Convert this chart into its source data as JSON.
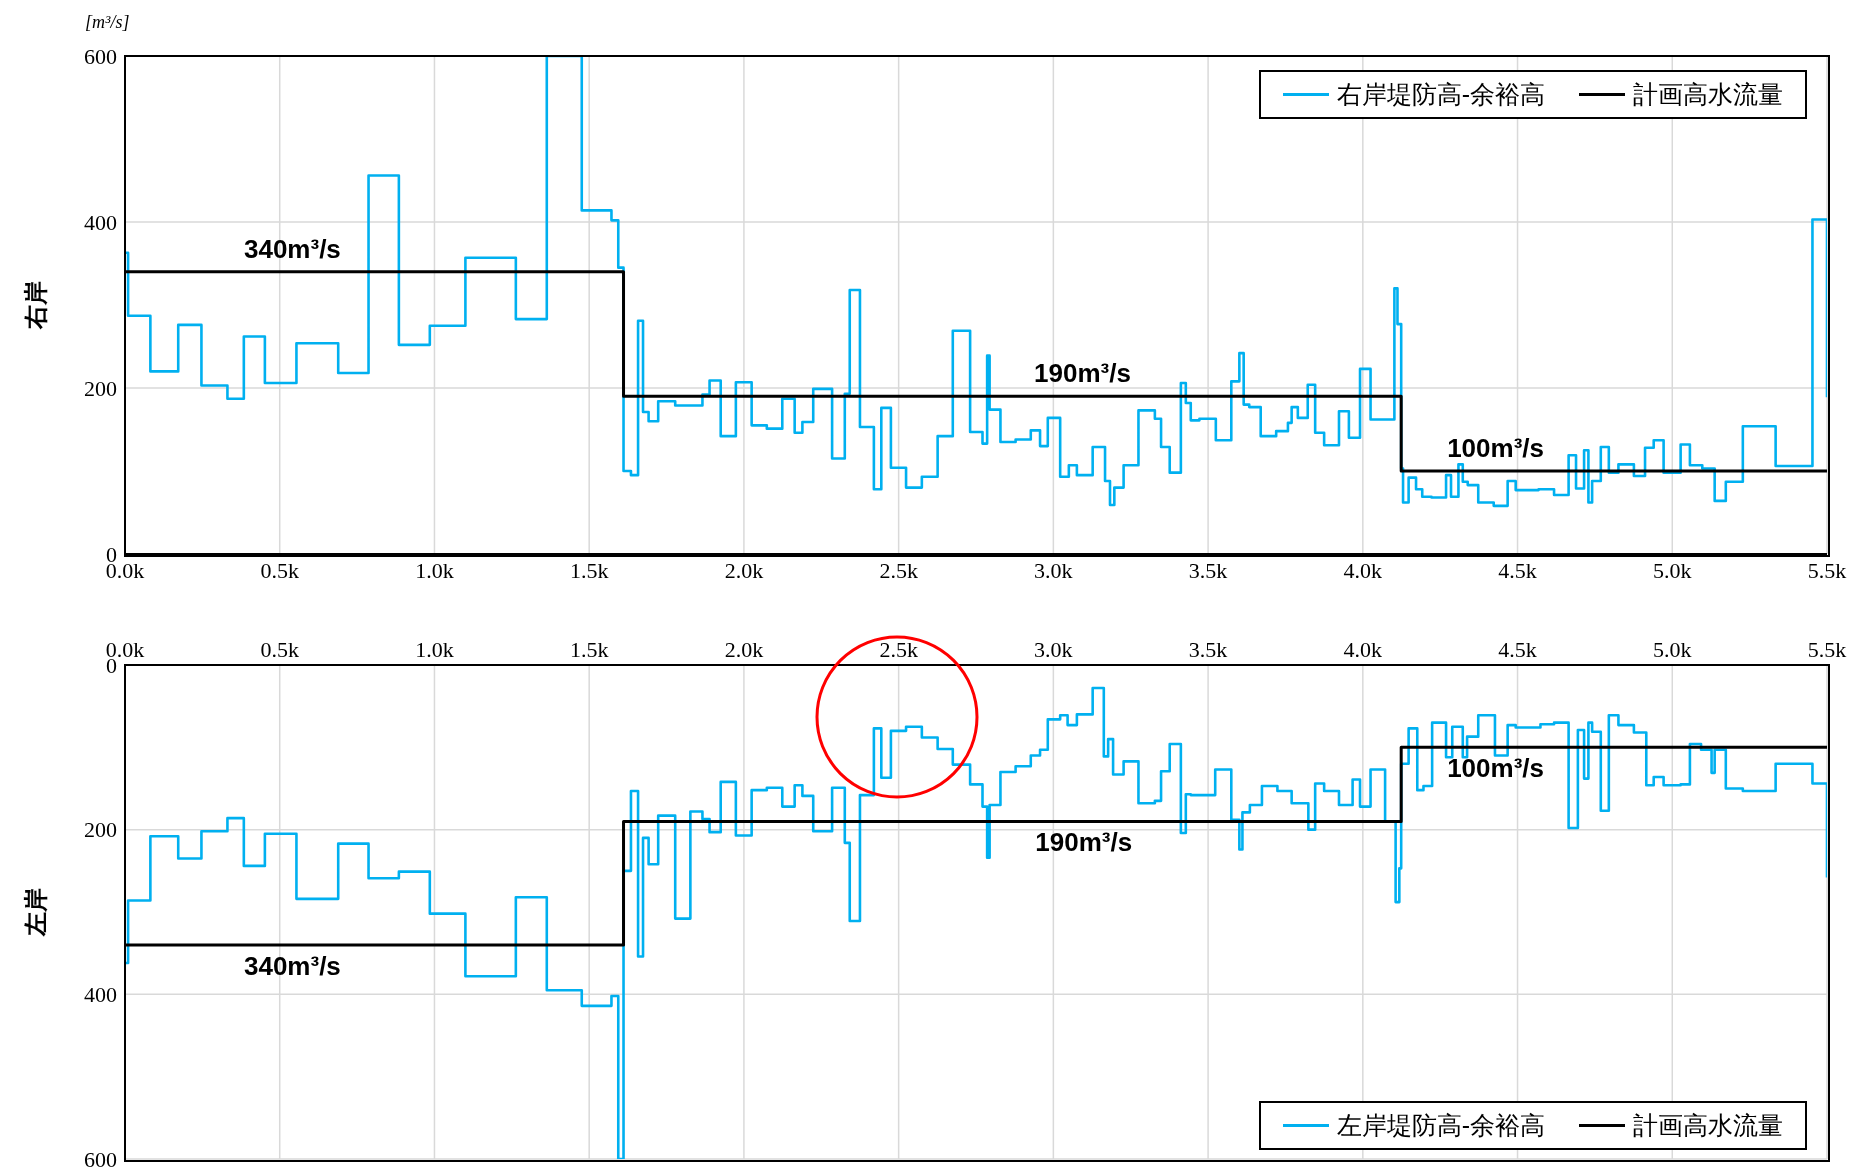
{
  "chart_data": [
    {
      "type": "step",
      "ylabel": "右岸",
      "annotations": [
        "[m³/s]",
        {
          "text": "340m³/s",
          "x": 541,
          "y": 340
        },
        {
          "text": "190m³/s",
          "x": 3094,
          "y": 190
        },
        {
          "text": "100m³/s",
          "x": 4429,
          "y": 100
        }
      ],
      "xlim": [
        0,
        5500
      ],
      "xticks": [
        {
          "value": 0,
          "label": "0.0k"
        },
        {
          "value": 500,
          "label": "0.5k"
        },
        {
          "value": 1000,
          "label": "1.0k"
        },
        {
          "value": 1500,
          "label": "1.5k"
        },
        {
          "value": 2000,
          "label": "2.0k"
        },
        {
          "value": 2500,
          "label": "2.5k"
        },
        {
          "value": 3000,
          "label": "3.0k"
        },
        {
          "value": 3500,
          "label": "3.5k"
        },
        {
          "value": 4000,
          "label": "4.0k"
        },
        {
          "value": 4500,
          "label": "4.5k"
        },
        {
          "value": 5000,
          "label": "5.0k"
        },
        {
          "value": 5500,
          "label": "5.5k"
        }
      ],
      "ylim": [
        0,
        600
      ],
      "yticks": [
        0,
        200,
        400,
        600
      ],
      "grid": true,
      "legend": "top right",
      "line_style": "solid",
      "series": [
        {
          "name": "右岸堤防高-余裕高",
          "color": "#00b0f0",
          "x": [
            0,
            10,
            82,
            172,
            247,
            331,
            384,
            452,
            554,
            689,
            787,
            885,
            985,
            1100,
            1263,
            1363,
            1476,
            1572,
            1594,
            1611,
            1635,
            1658,
            1674,
            1692,
            1723,
            1778,
            1866,
            1889,
            1925,
            1974,
            2025,
            2074,
            2124,
            2164,
            2189,
            2224,
            2285,
            2326,
            2342,
            2375,
            2420,
            2444,
            2475,
            2524,
            2575,
            2626,
            2675,
            2731,
            2771,
            2786,
            2794,
            2829,
            2878,
            2927,
            2957,
            2982,
            3022,
            3050,
            3076,
            3127,
            3167,
            3183,
            3197,
            3227,
            3275,
            3328,
            3348,
            3376,
            3412,
            3428,
            3444,
            3472,
            3525,
            3575,
            3601,
            3615,
            3633,
            3670,
            3720,
            3758,
            3770,
            3790,
            3822,
            3846,
            3875,
            3923,
            3955,
            3991,
            4025,
            4102,
            4112,
            4124,
            4130,
            4148,
            4172,
            4192,
            4222,
            4269,
            4285,
            4309,
            4323,
            4339,
            4373,
            4423,
            4468,
            4494,
            4568,
            4618,
            4665,
            4689,
            4715,
            4729,
            4741,
            4769,
            4795,
            4826,
            4876,
            4912,
            4940,
            4972,
            5027,
            5057,
            5097,
            5137,
            5173,
            5228,
            5334,
            5453,
            5500
          ],
          "values": [
            363,
            287,
            220,
            276,
            203,
            187,
            262,
            206,
            254,
            218,
            456,
            252,
            275,
            357,
            283,
            600,
            414,
            402,
            345,
            100,
            95,
            281,
            171,
            160,
            184,
            179,
            192,
            209,
            142,
            207,
            155,
            151,
            187,
            146,
            159,
            199,
            115,
            193,
            318,
            153,
            78,
            176,
            104,
            80,
            93,
            142,
            269,
            147,
            133,
            239,
            174,
            135,
            138,
            149,
            130,
            164,
            93,
            107,
            95,
            129,
            88,
            59,
            80,
            107,
            173,
            163,
            129,
            98,
            206,
            182,
            161,
            163,
            137,
            208,
            242,
            180,
            177,
            142,
            148,
            158,
            177,
            164,
            204,
            146,
            131,
            172,
            140,
            223,
            162,
            320,
            277,
            103,
            62,
            92,
            78,
            69,
            68,
            95,
            69,
            108,
            87,
            83,
            62,
            58,
            88,
            77,
            78,
            71,
            119,
            79,
            125,
            62,
            88,
            129,
            98,
            108,
            94,
            128,
            137,
            98,
            132,
            107,
            103,
            64,
            87,
            154,
            106,
            403,
            189
          ]
        },
        {
          "name": "計画高水流量",
          "color": "#000000",
          "x": [
            0,
            1611,
            4124,
            5500
          ],
          "values": [
            340,
            190,
            100,
            100
          ]
        }
      ]
    },
    {
      "type": "step",
      "ylabel": "左岸",
      "annotations": [
        {
          "text": "340m³/s",
          "x": 541,
          "y": 340
        },
        {
          "text": "190m³/s",
          "x": 3098,
          "y": 190
        },
        {
          "text": "100m³/s",
          "x": 4429,
          "y": 100
        }
      ],
      "xlim": [
        0,
        5500
      ],
      "tick_labels": "y",
      "x2lim": [
        0,
        5500
      ],
      "x2ticks": [
        {
          "value": 0,
          "label": "0.0k"
        },
        {
          "value": 500,
          "label": "0.5k"
        },
        {
          "value": 1000,
          "label": "1.0k"
        },
        {
          "value": 1500,
          "label": "1.5k"
        },
        {
          "value": 2000,
          "label": "2.0k"
        },
        {
          "value": 2500,
          "label": "2.5k"
        },
        {
          "value": 3000,
          "label": "3.0k"
        },
        {
          "value": 3500,
          "label": "3.5k"
        },
        {
          "value": 4000,
          "label": "4.0k"
        },
        {
          "value": 4500,
          "label": "4.5k"
        },
        {
          "value": 5000,
          "label": "5.0k"
        },
        {
          "value": 5500,
          "label": "5.5k"
        }
      ],
      "ylim": [
        600,
        0
      ],
      "yticks": [
        0,
        200,
        400,
        600
      ],
      "grid": true,
      "legend": "bottom right",
      "line_style": "solid",
      "series": [
        {
          "name": "左岸堤防高-余裕高",
          "color": "#00b0f0",
          "x": [
            0,
            10,
            82,
            172,
            247,
            331,
            384,
            452,
            554,
            689,
            787,
            885,
            985,
            1100,
            1263,
            1363,
            1476,
            1572,
            1594,
            1611,
            1635,
            1658,
            1674,
            1692,
            1723,
            1778,
            1827,
            1866,
            1889,
            1925,
            1974,
            2025,
            2074,
            2124,
            2164,
            2189,
            2224,
            2285,
            2326,
            2342,
            2375,
            2420,
            2444,
            2475,
            2524,
            2575,
            2626,
            2675,
            2731,
            2771,
            2786,
            2794,
            2829,
            2878,
            2927,
            2957,
            2982,
            3022,
            3046,
            3076,
            3127,
            3163,
            3177,
            3193,
            3227,
            3275,
            3328,
            3348,
            3376,
            3412,
            3428,
            3444,
            3523,
            3575,
            3601,
            3611,
            3635,
            3674,
            3724,
            3770,
            3824,
            3846,
            3875,
            3923,
            3967,
            3991,
            4025,
            4072,
            4106,
            4118,
            4124,
            4148,
            4176,
            4196,
            4224,
            4269,
            4289,
            4323,
            4337,
            4373,
            4427,
            4468,
            4494,
            4574,
            4618,
            4665,
            4695,
            4715,
            4729,
            4741,
            4769,
            4795,
            4826,
            4876,
            4916,
            4940,
            4972,
            5027,
            5057,
            5093,
            5127,
            5137,
            5173,
            5228,
            5334,
            5453,
            5500
          ],
          "values": [
            362,
            286,
            208,
            235,
            202,
            186,
            244,
            205,
            284,
            217,
            259,
            251,
            302,
            378,
            282,
            395,
            414,
            402,
            600,
            250,
            153,
            354,
            210,
            242,
            183,
            308,
            178,
            187,
            203,
            142,
            207,
            152,
            149,
            172,
            146,
            159,
            202,
            149,
            216,
            311,
            158,
            77,
            137,
            80,
            75,
            88,
            102,
            121,
            145,
            172,
            234,
            170,
            130,
            123,
            110,
            103,
            66,
            61,
            73,
            60,
            28,
            111,
            90,
            133,
            117,
            168,
            165,
            129,
            96,
            204,
            157,
            158,
            127,
            188,
            224,
            179,
            170,
            147,
            153,
            168,
            200,
            144,
            153,
            170,
            139,
            172,
            127,
            190,
            288,
            247,
            120,
            77,
            152,
            147,
            70,
            112,
            75,
            112,
            87,
            61,
            110,
            73,
            76,
            72,
            70,
            198,
            79,
            138,
            70,
            81,
            177,
            61,
            73,
            82,
            146,
            136,
            146,
            145,
            96,
            103,
            131,
            103,
            150,
            153,
            120,
            144,
            258
          ]
        },
        {
          "name": "計画高水流量",
          "color": "#000000",
          "x": [
            0,
            1611,
            4124,
            5500
          ],
          "values": [
            340,
            190,
            100,
            100
          ]
        }
      ]
    }
  ]
}
